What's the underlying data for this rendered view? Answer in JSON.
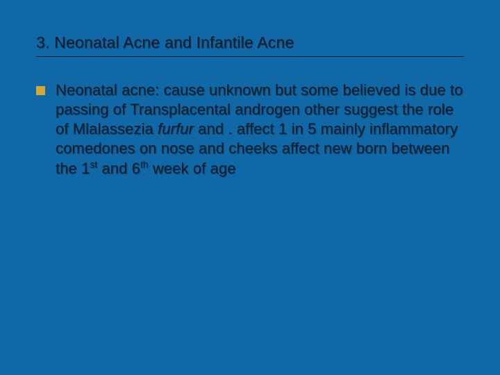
{
  "slide": {
    "background_color": "#1068a6",
    "text_color": "#0b1d2f",
    "title_underline_color": "#0b1d2f",
    "bullet_color": "#d2a83a",
    "title_fontsize": 23,
    "body_fontsize": 22,
    "title": "3. Neonatal Acne and Infantile Acne",
    "bullet": {
      "lead": "Neonatal acne: cause unknown but some believed is due to passing of Transplacental androgen other suggest the role of Mlalassezia ",
      "italic": "furfur",
      "mid": " and .   affect 1 in 5 mainly inflammatory comedones on nose and cheeks affect new born between the 1",
      "sup1": "st",
      "mid2": " and 6",
      "sup2": "th",
      "tail": " week of age"
    }
  }
}
